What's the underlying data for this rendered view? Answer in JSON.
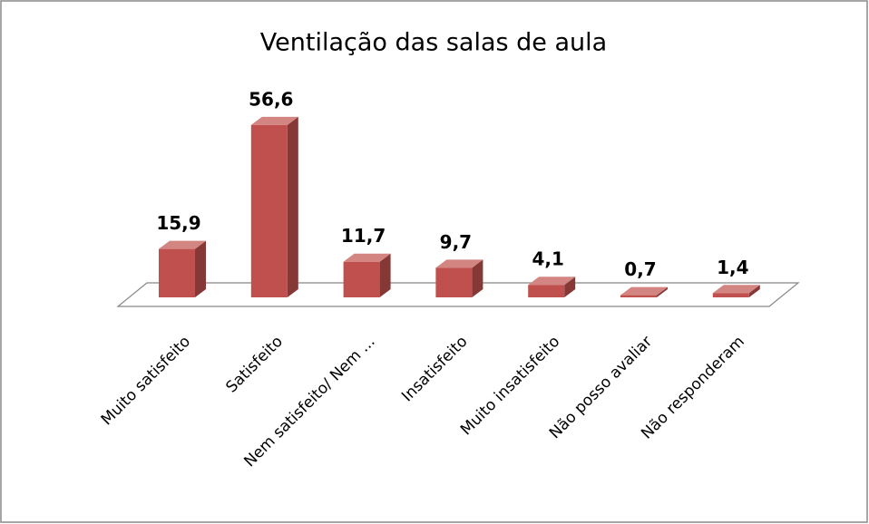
{
  "chart_data": {
    "type": "bar3d",
    "title": "Ventilação das salas de aula",
    "categories": [
      "Muito satisfeito",
      "Satisfeito",
      "Nem satisfeito/ Nem ...",
      "Insatisfeito",
      "Muito insatisfeito",
      "Não posso avaliar",
      "Não responderam"
    ],
    "values": [
      15.9,
      56.6,
      11.7,
      9.7,
      4.1,
      0.7,
      1.4
    ],
    "value_labels": [
      "15,9",
      "56,6",
      "11,7",
      "9,7",
      "4,1",
      "0,7",
      "1,4"
    ],
    "color": "#c0504d"
  }
}
